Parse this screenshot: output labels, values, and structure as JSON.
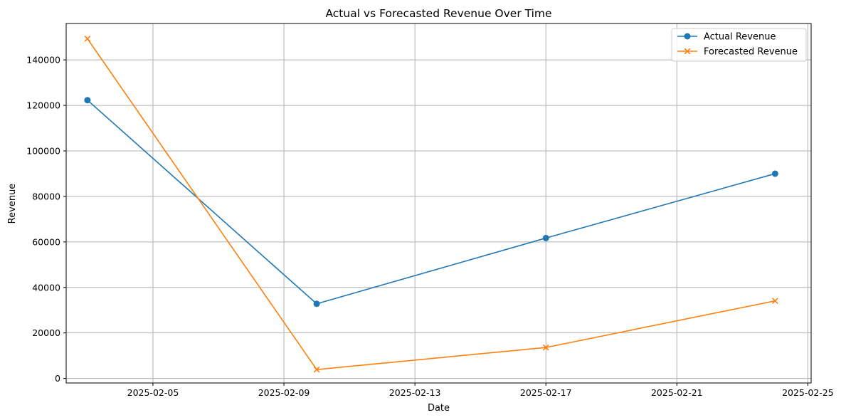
{
  "chart_data": {
    "type": "line",
    "title": "Actual vs Forecasted Revenue Over Time",
    "xlabel": "Date",
    "ylabel": "Revenue",
    "x": [
      "2025-02-03",
      "2025-02-10",
      "2025-02-17",
      "2025-02-24"
    ],
    "xlim": [
      "2025-02-02",
      "2025-02-25"
    ],
    "xticks": [
      "2025-02-05",
      "2025-02-09",
      "2025-02-13",
      "2025-02-17",
      "2025-02-21",
      "2025-02-25"
    ],
    "ylim": [
      -2000,
      156000
    ],
    "yticks": [
      0,
      20000,
      40000,
      60000,
      80000,
      100000,
      120000,
      140000
    ],
    "grid": true,
    "legend_position": "top-right",
    "series": [
      {
        "name": "Actual Revenue",
        "values": [
          122300,
          32800,
          61700,
          90000
        ],
        "color": "#1f77b4",
        "marker": "circle"
      },
      {
        "name": "Forecasted Revenue",
        "values": [
          149300,
          3900,
          13600,
          34100
        ],
        "color": "#ff7f0e",
        "marker": "x"
      }
    ]
  }
}
